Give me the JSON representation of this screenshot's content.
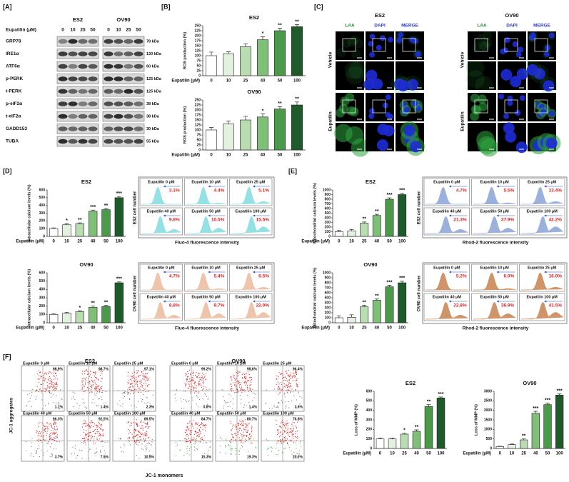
{
  "panel_labels": [
    "[A]",
    "[B]",
    "[C]",
    "[D]",
    "[E]",
    "[F]"
  ],
  "western_blot": {
    "treatment_label": "Eupatilin (μM)",
    "groups": [
      {
        "name": "ES2",
        "doses": [
          "0",
          "10",
          "25",
          "50"
        ]
      },
      {
        "name": "OV90",
        "doses": [
          "0",
          "10",
          "25",
          "50"
        ]
      }
    ],
    "proteins": [
      {
        "name": "GRP78",
        "size": "78 kDa"
      },
      {
        "name": "IRE1α",
        "size": "130 kDa"
      },
      {
        "name": "ATF6α",
        "size": "60 kDa"
      },
      {
        "name": "p-PERK",
        "size": "125 kDa"
      },
      {
        "name": "t-PERK",
        "size": "125 kDa"
      },
      {
        "name": "p-eIF2α",
        "size": "38 kDa"
      },
      {
        "name": "t-eIF2α",
        "size": "38 kDa"
      },
      {
        "name": "GADD153",
        "size": "30 kDa"
      },
      {
        "name": "TUBA",
        "size": "55 kDa"
      }
    ]
  },
  "confocal": {
    "groups": [
      "ES2",
      "OV90"
    ],
    "channels": [
      "LAA",
      "DAPI",
      "MERGE"
    ],
    "conditions": [
      "Vehicle",
      "Eupatilin"
    ]
  },
  "chart_data": [
    {
      "type": "bar",
      "title": "ES2",
      "y_label": "ROS production (%)",
      "x_label": "Eupatilin (μM)",
      "categories": [
        "0",
        "10",
        "25",
        "40",
        "50",
        "100"
      ],
      "values": [
        100,
        110,
        145,
        180,
        225,
        245
      ],
      "errors": [
        18,
        10,
        15,
        15,
        12,
        10
      ],
      "annotations": [
        null,
        null,
        null,
        "*",
        "**",
        "**"
      ],
      "colors": [
        "#ffffff",
        "#e3f1df",
        "#b9dcb0",
        "#7fbf78",
        "#4a9a4a",
        "#1f5a2a"
      ],
      "ylim": [
        0,
        250
      ],
      "yticks": [
        0,
        25,
        50,
        75,
        100,
        125,
        150,
        175,
        200,
        225,
        250
      ]
    },
    {
      "type": "bar",
      "title": "OV90",
      "y_label": "ROS production (%)",
      "x_label": "Eupatilin (μM)",
      "categories": [
        "0",
        "10",
        "25",
        "40",
        "50",
        "100"
      ],
      "values": [
        100,
        130,
        150,
        165,
        205,
        225
      ],
      "errors": [
        12,
        15,
        18,
        15,
        12,
        15
      ],
      "annotations": [
        null,
        null,
        null,
        "*",
        "**",
        "**"
      ],
      "colors": [
        "#ffffff",
        "#e3f1df",
        "#b9dcb0",
        "#7fbf78",
        "#4a9a4a",
        "#1f5a2a"
      ],
      "ylim": [
        0,
        250
      ],
      "yticks": [
        0,
        25,
        50,
        75,
        100,
        125,
        150,
        175,
        200,
        225,
        250
      ]
    },
    {
      "type": "bar",
      "title": "ES2",
      "y_label": "Intracellular calcium levels (%)",
      "x_label": "Eupatilin (μM)",
      "categories": [
        "0",
        "10",
        "25",
        "40",
        "50",
        "100"
      ],
      "values": [
        100,
        150,
        165,
        325,
        345,
        500
      ],
      "errors": [
        10,
        15,
        10,
        15,
        15,
        15
      ],
      "annotations": [
        null,
        "*",
        "**",
        "***",
        "**",
        "***"
      ],
      "colors": [
        "#ffffff",
        "#e3f1df",
        "#b9dcb0",
        "#7fbf78",
        "#4a9a4a",
        "#1f5a2a"
      ],
      "ylim": [
        0,
        600
      ],
      "yticks": [
        0,
        100,
        200,
        300,
        400,
        500,
        600
      ]
    },
    {
      "type": "bar",
      "title": "OV90",
      "y_label": "Intracellular calcium levels (%)",
      "x_label": "Eupatilin (μM)",
      "categories": [
        "0",
        "10",
        "25",
        "40",
        "50",
        "100"
      ],
      "values": [
        100,
        115,
        135,
        185,
        195,
        480
      ],
      "errors": [
        10,
        10,
        10,
        15,
        15,
        10
      ],
      "annotations": [
        null,
        null,
        "*",
        "**",
        "**",
        "***"
      ],
      "colors": [
        "#ffffff",
        "#e3f1df",
        "#b9dcb0",
        "#7fbf78",
        "#4a9a4a",
        "#1f5a2a"
      ],
      "ylim": [
        0,
        600
      ],
      "yticks": [
        0,
        100,
        200,
        300,
        400,
        500,
        600
      ]
    },
    {
      "type": "bar",
      "title": "ES2",
      "y_label": "Mitochondrial calcium levels (%)",
      "x_label": "Eupatilin (μM)",
      "categories": [
        "0",
        "10",
        "25",
        "40",
        "50",
        "100"
      ],
      "values": [
        100,
        120,
        285,
        450,
        800,
        900
      ],
      "errors": [
        30,
        30,
        25,
        25,
        30,
        30
      ],
      "annotations": [
        null,
        null,
        "**",
        "**",
        "***",
        "***"
      ],
      "colors": [
        "#ffffff",
        "#e3f1df",
        "#b9dcb0",
        "#7fbf78",
        "#4a9a4a",
        "#1f5a2a"
      ],
      "ylim": [
        0,
        1000
      ],
      "yticks": [
        0,
        100,
        200,
        300,
        400,
        500,
        600,
        700,
        800,
        900,
        1000
      ]
    },
    {
      "type": "bar",
      "title": "OV90",
      "y_label": "Mitochondrial calcium levels (%)",
      "x_label": "Eupatilin (μM)",
      "categories": [
        "0",
        "10",
        "25",
        "40",
        "50",
        "100"
      ],
      "values": [
        100,
        110,
        320,
        450,
        720,
        800
      ],
      "errors": [
        40,
        50,
        30,
        25,
        30,
        30
      ],
      "annotations": [
        null,
        null,
        "**",
        "**",
        "***",
        "***"
      ],
      "colors": [
        "#ffffff",
        "#e3f1df",
        "#b9dcb0",
        "#7fbf78",
        "#4a9a4a",
        "#1f5a2a"
      ],
      "ylim": [
        0,
        1000
      ],
      "yticks": [
        0,
        100,
        200,
        300,
        400,
        500,
        600,
        700,
        800,
        900,
        1000
      ]
    },
    {
      "type": "bar",
      "title": "ES2",
      "y_label": "Loss of MMP (%)",
      "x_label": "Eupatilin (μM)",
      "categories": [
        "0",
        "10",
        "25",
        "40",
        "50",
        "100"
      ],
      "values": [
        100,
        100,
        150,
        180,
        440,
        530
      ],
      "errors": [
        10,
        10,
        10,
        15,
        20,
        10
      ],
      "annotations": [
        null,
        null,
        "*",
        "**",
        "**",
        "***"
      ],
      "colors": [
        "#ffffff",
        "#e3f1df",
        "#b9dcb0",
        "#7fbf78",
        "#4a9a4a",
        "#1f5a2a"
      ],
      "ylim": [
        0,
        600
      ],
      "yticks": [
        0,
        100,
        200,
        300,
        400,
        500,
        600
      ]
    },
    {
      "type": "bar",
      "title": "OV90",
      "y_label": "Loss of MMP (%)",
      "x_label": "Eupatilin (μM)",
      "categories": [
        "0",
        "10",
        "25",
        "40",
        "50",
        "100"
      ],
      "values": [
        100,
        200,
        450,
        1850,
        2300,
        2800
      ],
      "errors": [
        20,
        30,
        50,
        100,
        80,
        60
      ],
      "annotations": [
        null,
        null,
        "**",
        "***",
        "***",
        "***"
      ],
      "colors": [
        "#ffffff",
        "#e3f1df",
        "#b9dcb0",
        "#7fbf78",
        "#4a9a4a",
        "#1f5a2a"
      ],
      "ylim": [
        0,
        3000
      ],
      "yticks": [
        0,
        500,
        1000,
        1500,
        2000,
        2500,
        3000
      ]
    }
  ],
  "flow_histograms": [
    {
      "y_label": "ES2 cell number",
      "x_label": "Fluo-4 fluorescence intensity",
      "color": "#93e1e4",
      "panels": [
        {
          "label": "Eupatilin 0 μM",
          "percent": "3.1%"
        },
        {
          "label": "Eupatilin 10 μM",
          "percent": "4.4%"
        },
        {
          "label": "Eupatilin 25 μM",
          "percent": "5.1%"
        },
        {
          "label": "Eupatilin 40 μM",
          "percent": "9.8%"
        },
        {
          "label": "Eupatilin 50 μM",
          "percent": "10.5%"
        },
        {
          "label": "Eupatilin 100 μM",
          "percent": "15.5%"
        }
      ]
    },
    {
      "y_label": "OV90 cell number",
      "x_label": "Fluo-4 fluorescence intensity",
      "color": "#eec4aa",
      "panels": [
        {
          "label": "Eupatilin 0 μM",
          "percent": "4.7%"
        },
        {
          "label": "Eupatilin 10 μM",
          "percent": "5.4%"
        },
        {
          "label": "Eupatilin 25 μM",
          "percent": "6.5%"
        },
        {
          "label": "Eupatilin 40 μM",
          "percent": "8.8%"
        },
        {
          "label": "Eupatilin 50 μM",
          "percent": "9.7%"
        },
        {
          "label": "Eupatilin 100 μM",
          "percent": "22.0%"
        }
      ]
    },
    {
      "y_label": "ES2 cell number",
      "x_label": "Rhod-2 fluorescence intensity",
      "color": "#9bb0da",
      "panels": [
        {
          "label": "Eupatilin 0 μM",
          "percent": "4.7%"
        },
        {
          "label": "Eupatilin 10 μM",
          "percent": "5.5%"
        },
        {
          "label": "Eupatilin 25 μM",
          "percent": "13.4%"
        },
        {
          "label": "Eupatilin 40 μM",
          "percent": "21.3%"
        },
        {
          "label": "Eupatilin 50 μM",
          "percent": "37.9%"
        },
        {
          "label": "Eupatilin 100 μM",
          "percent": "42.2%"
        }
      ]
    },
    {
      "y_label": "OV90 cell number",
      "x_label": "Rhod-2 fluorescence intensity",
      "color": "#cf9468",
      "panels": [
        {
          "label": "Eupatilin 0 μM",
          "percent": "5.2%"
        },
        {
          "label": "Eupatilin 10 μM",
          "percent": "6.0%"
        },
        {
          "label": "Eupatilin 25 μM",
          "percent": "16.0%"
        },
        {
          "label": "Eupatilin 40 μM",
          "percent": "22.8%"
        },
        {
          "label": "Eupatilin 50 μM",
          "percent": "36.9%"
        },
        {
          "label": "Eupatilin 100 μM",
          "percent": "41.5%"
        }
      ]
    }
  ],
  "dot_plots": {
    "y_label": "JC-1 aggregates",
    "x_label": "JC-1 monomers",
    "groups": [
      {
        "name": "ES2",
        "panels": [
          {
            "label": "Eupatilin 0 μM",
            "upper": "98.9%",
            "lower": "1.1%"
          },
          {
            "label": "Eupatilin 10 μM",
            "upper": "98.7%",
            "lower": "1.4%"
          },
          {
            "label": "Eupatilin 25 μM",
            "upper": "97.1%",
            "lower": "2.3%"
          },
          {
            "label": "Eupatilin 40 μM",
            "upper": "96.3%",
            "lower": "3.7%"
          },
          {
            "label": "Eupatilin 50 μM",
            "upper": "92.5%",
            "lower": "7.5%"
          },
          {
            "label": "Eupatilin 100 μM",
            "upper": "89.5%",
            "lower": "10.5%"
          }
        ]
      },
      {
        "name": "OV90",
        "panels": [
          {
            "label": "Eupatilin 0 μM",
            "upper": "99.2%",
            "lower": "0.8%"
          },
          {
            "label": "Eupatilin 10 μM",
            "upper": "98.6%",
            "lower": "1.4%"
          },
          {
            "label": "Eupatilin 25 μM",
            "upper": "96.4%",
            "lower": "3.6%"
          },
          {
            "label": "Eupatilin 40 μM",
            "upper": "84.7%",
            "lower": "15.3%"
          },
          {
            "label": "Eupatilin 50 μM",
            "upper": "80.7%",
            "lower": "19.3%"
          },
          {
            "label": "Eupatilin 100 μM",
            "upper": "76.8%",
            "lower": "23.2%"
          }
        ]
      }
    ]
  }
}
